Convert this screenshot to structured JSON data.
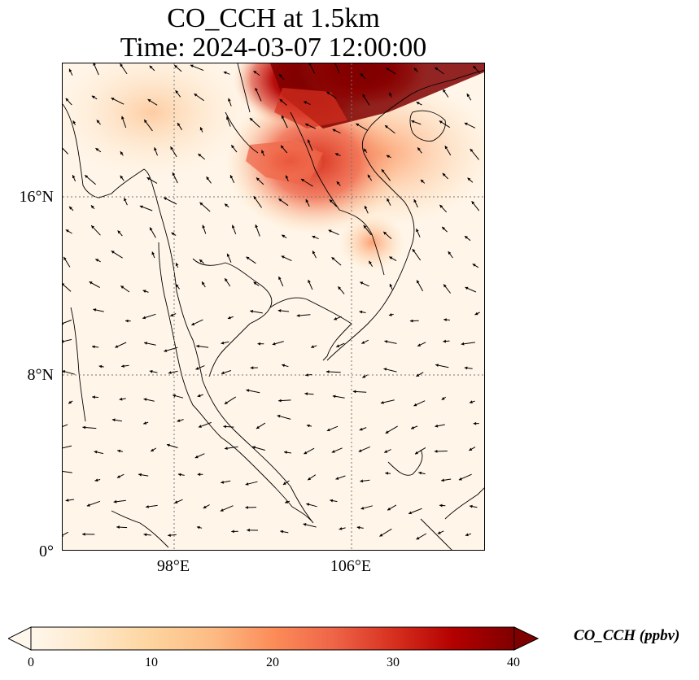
{
  "title": {
    "line1": "CO_CCH at 1.5km",
    "line2": "Time: 2024-03-07 12:00:00"
  },
  "map": {
    "lat_ticks": [
      "16°N",
      "8°N",
      "0°"
    ],
    "lon_ticks": [
      "98°E",
      "106°E"
    ],
    "gridlines": "dotted",
    "variable": "CO_CCH",
    "level": "1.5km",
    "field_description_color_high": "#7f0000"
  },
  "colorbar": {
    "label": "CO_CCH (ppbv)",
    "ticks": [
      "0",
      "10",
      "20",
      "30",
      "40"
    ],
    "min": 0,
    "max": 40,
    "extend": "both",
    "colormap": "OrRd",
    "colors": [
      "#fff7ec",
      "#fee8c8",
      "#fdd49e",
      "#fdbb84",
      "#fc8d59",
      "#ef6548",
      "#d7301f",
      "#b30000",
      "#7f0000"
    ]
  }
}
